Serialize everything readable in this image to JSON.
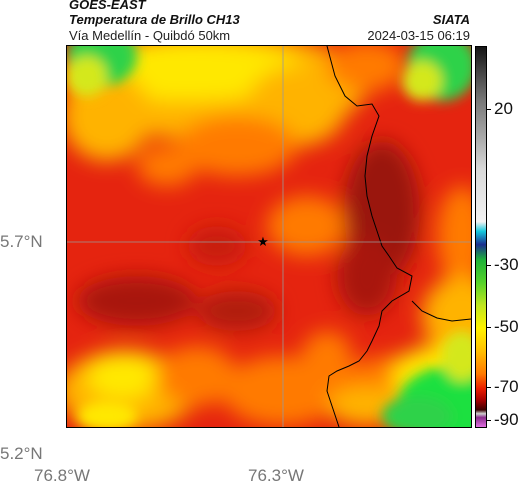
{
  "header": {
    "source": "GOES-EAST",
    "product": "Temperatura de Brillo CH13",
    "place": "Vía Medellín - Quibdó 50km",
    "org": "SIATA",
    "datetime": "2024-03-15 06:19"
  },
  "axes": {
    "lat_labels": [
      "5.7°N",
      "5.2°N"
    ],
    "lon_labels": [
      "76.8°W",
      "76.3°W"
    ]
  },
  "colorbar": {
    "labels": [
      "20",
      "-30",
      "-50",
      "-70",
      "-90"
    ],
    "colors": [
      "#151515",
      "#404040",
      "#777777",
      "#aaaaaa",
      "#d8d8d8",
      "#f2f2f2",
      "#14c8dc",
      "#1a2e8f",
      "#1fb23a",
      "#55d22a",
      "#bfe61f",
      "#fff200",
      "#ffbf00",
      "#ff7a00",
      "#e81c00",
      "#a40000",
      "#3a0000",
      "#cfcfcf",
      "#8a2c8c",
      "#e070e0"
    ]
  },
  "map": {
    "palette": {
      "dark_red": "#9a1208",
      "red": "#e5240f",
      "orange": "#ff7a00",
      "amber": "#ffb300",
      "yellow": "#ffe800",
      "yellow_green": "#d4e81e",
      "green": "#2ed24a",
      "bright_green": "#1ee040"
    },
    "marker": "star-icon"
  }
}
